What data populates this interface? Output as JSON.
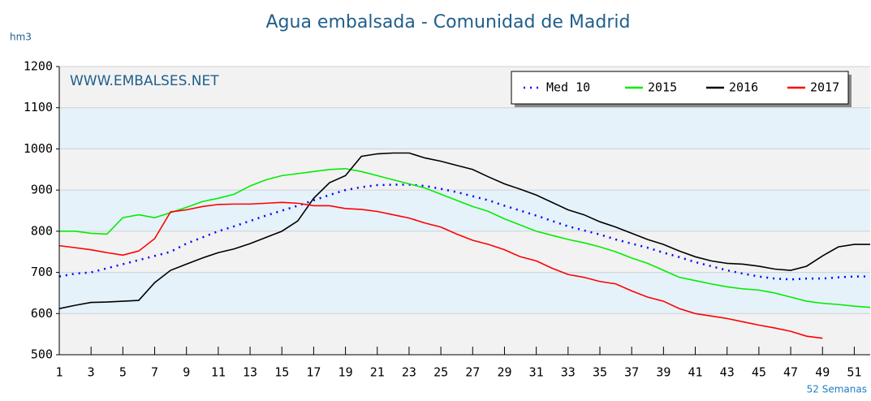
{
  "chart_data": {
    "type": "line",
    "title": "Agua embalsada - Comunidad de Madrid",
    "y_label": "hm3",
    "x_label": "52 Semanas",
    "watermark": "WWW.EMBALSES.NET",
    "x": [
      1,
      2,
      3,
      4,
      5,
      6,
      7,
      8,
      9,
      10,
      11,
      12,
      13,
      14,
      15,
      16,
      17,
      18,
      19,
      20,
      21,
      22,
      23,
      24,
      25,
      26,
      27,
      28,
      29,
      30,
      31,
      32,
      33,
      34,
      35,
      36,
      37,
      38,
      39,
      40,
      41,
      42,
      43,
      44,
      45,
      46,
      47,
      48,
      49,
      50,
      51,
      52
    ],
    "xlim": [
      1,
      52
    ],
    "xticks": [
      1,
      3,
      5,
      7,
      9,
      11,
      13,
      15,
      17,
      19,
      21,
      23,
      25,
      27,
      29,
      31,
      33,
      35,
      37,
      39,
      41,
      43,
      45,
      47,
      49,
      51
    ],
    "ylim": [
      500,
      1200
    ],
    "yticks": [
      500,
      600,
      700,
      800,
      900,
      1000,
      1100,
      1200
    ],
    "legend": "top-right",
    "series": [
      {
        "name": "Med 10",
        "color": "#0000ff",
        "style": "dotted",
        "values": [
          690,
          697,
          700,
          710,
          720,
          730,
          740,
          750,
          770,
          785,
          800,
          812,
          825,
          838,
          850,
          862,
          875,
          888,
          900,
          907,
          912,
          913,
          913,
          910,
          903,
          895,
          885,
          875,
          862,
          850,
          838,
          825,
          812,
          802,
          792,
          780,
          770,
          760,
          748,
          737,
          725,
          715,
          705,
          697,
          690,
          685,
          683,
          685,
          685,
          688,
          690,
          690
        ]
      },
      {
        "name": "2015",
        "color": "#00ee00",
        "style": "solid",
        "values": [
          800,
          800,
          795,
          793,
          833,
          840,
          833,
          845,
          858,
          872,
          880,
          890,
          910,
          925,
          935,
          940,
          945,
          950,
          952,
          945,
          935,
          925,
          915,
          905,
          890,
          875,
          860,
          848,
          830,
          815,
          800,
          790,
          780,
          772,
          762,
          750,
          735,
          722,
          705,
          688,
          680,
          672,
          665,
          660,
          657,
          650,
          640,
          630,
          625,
          622,
          618,
          615
        ]
      },
      {
        "name": "2016",
        "color": "#000000",
        "style": "solid",
        "values": [
          612,
          620,
          627,
          628,
          630,
          632,
          675,
          705,
          720,
          735,
          748,
          757,
          770,
          785,
          800,
          825,
          880,
          918,
          935,
          982,
          988,
          990,
          990,
          978,
          970,
          960,
          950,
          932,
          915,
          902,
          888,
          870,
          852,
          840,
          823,
          810,
          795,
          780,
          768,
          752,
          738,
          728,
          722,
          720,
          715,
          708,
          705,
          715,
          740,
          762,
          768,
          768
        ]
      },
      {
        "name": "2017",
        "color": "#ff0000",
        "style": "solid",
        "values": [
          765,
          760,
          755,
          748,
          742,
          752,
          782,
          847,
          852,
          860,
          865,
          866,
          866,
          868,
          870,
          868,
          862,
          862,
          855,
          853,
          848,
          840,
          832,
          820,
          810,
          793,
          778,
          768,
          755,
          738,
          728,
          710,
          695,
          688,
          678,
          672,
          655,
          640,
          630,
          612,
          600,
          594,
          588,
          580,
          572,
          565,
          557,
          545,
          540,
          null,
          null,
          null
        ]
      }
    ]
  }
}
